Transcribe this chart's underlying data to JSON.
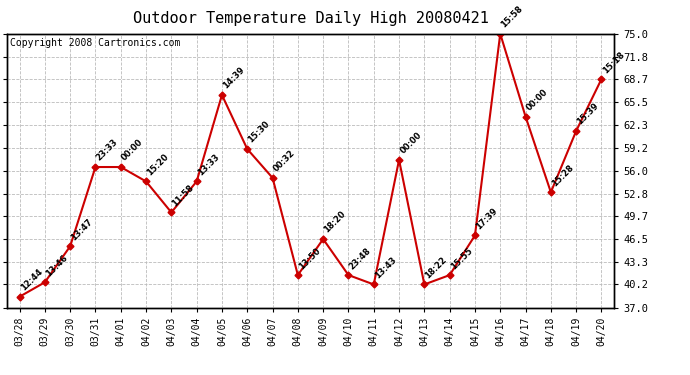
{
  "title": "Outdoor Temperature Daily High 20080421",
  "copyright": "Copyright 2008 Cartronics.com",
  "x_labels": [
    "03/28",
    "03/29",
    "03/30",
    "03/31",
    "04/01",
    "04/02",
    "04/03",
    "04/04",
    "04/05",
    "04/06",
    "04/07",
    "04/08",
    "04/09",
    "04/10",
    "04/11",
    "04/12",
    "04/13",
    "04/14",
    "04/15",
    "04/16",
    "04/17",
    "04/18",
    "04/19",
    "04/20"
  ],
  "y_values": [
    38.5,
    40.5,
    45.5,
    56.5,
    56.5,
    54.5,
    50.2,
    54.5,
    66.5,
    59.0,
    55.0,
    41.5,
    46.5,
    41.5,
    40.2,
    57.5,
    40.2,
    41.5,
    47.0,
    75.0,
    63.5,
    53.0,
    61.5,
    68.7
  ],
  "time_labels": [
    "12:44",
    "13:46",
    "13:47",
    "23:33",
    "00:00",
    "15:20",
    "11:58",
    "13:33",
    "14:39",
    "15:30",
    "00:32",
    "13:50",
    "18:20",
    "23:48",
    "13:43",
    "00:00",
    "18:22",
    "15:55",
    "17:39",
    "15:58",
    "00:00",
    "15:28",
    "15:39",
    "15:18"
  ],
  "y_ticks": [
    37.0,
    40.2,
    43.3,
    46.5,
    49.7,
    52.8,
    56.0,
    59.2,
    62.3,
    65.5,
    68.7,
    71.8,
    75.0
  ],
  "line_color": "#cc0000",
  "marker_color": "#cc0000",
  "grid_color": "#bbbbbb",
  "background_color": "#ffffff",
  "title_fontsize": 11,
  "copyright_fontsize": 7
}
